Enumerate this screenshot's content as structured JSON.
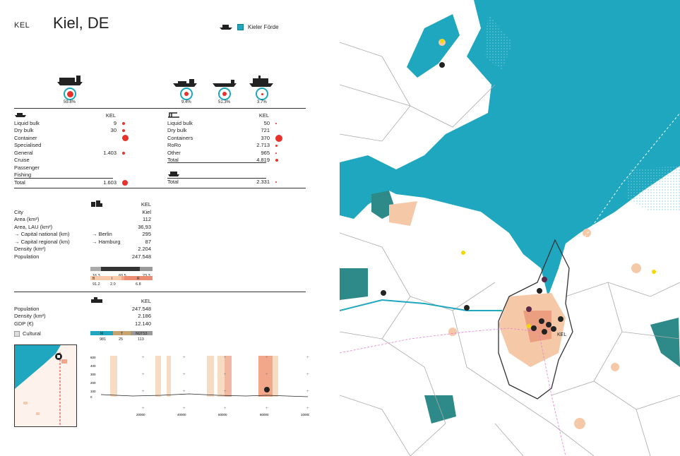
{
  "header": {
    "code": "KEL",
    "city": "Kiel, DE",
    "water_label": "Kieler Förde"
  },
  "icons": {
    "ship_main": "container-ship-icon",
    "ship_a": "tanker-icon",
    "ship_b": "bulk-ship-icon",
    "ship_c": "ferry-icon"
  },
  "badges": {
    "main_pct": "59.8%",
    "a_pct": "9.4%",
    "b_pct": "51.3%",
    "c_pct": "3.7%"
  },
  "left_table": {
    "col_header": "KEL",
    "rows": [
      {
        "label": "Liquid bulk",
        "value": "9"
      },
      {
        "label": "Dry bulk",
        "value": "30"
      },
      {
        "label": "Container",
        "value": ""
      },
      {
        "label": "Specialised",
        "value": ""
      },
      {
        "label": "General",
        "value": "1.403"
      },
      {
        "label": "Cruise",
        "value": ""
      },
      {
        "label": "Passenger",
        "value": ""
      },
      {
        "label": "Fishing",
        "value": ""
      },
      {
        "label": "Total",
        "value": "1.603"
      }
    ]
  },
  "right_table": {
    "col_header": "KEL",
    "rows": [
      {
        "label": "Liquid bulk",
        "value": "50"
      },
      {
        "label": "Dry bulk",
        "value": "721"
      },
      {
        "label": "Containers",
        "value": "370"
      },
      {
        "label": "RoRo",
        "value": "2.713"
      },
      {
        "label": "Other",
        "value": "965"
      },
      {
        "label": "Total",
        "value": "4.819"
      }
    ],
    "passenger_total_label": "Total",
    "passenger_total_value": "2.331"
  },
  "city_table": {
    "col_header": "KEL",
    "rows": [
      {
        "label": "City",
        "mid": "",
        "value": "Kiel"
      },
      {
        "label": "Area (km²)",
        "mid": "",
        "value": "112"
      },
      {
        "label": "Area, LAU (km²)",
        "mid": "",
        "value": "36,93"
      },
      {
        "label": "→ Capital national (km)",
        "mid": "→ Berlin",
        "value": "295"
      },
      {
        "label": "→ Capital regional (km)",
        "mid": "→ Hamburg",
        "value": "87"
      },
      {
        "label": "Density (km²)",
        "mid": "",
        "value": "2.204"
      },
      {
        "label": "Population",
        "mid": "",
        "value": "247.548"
      }
    ]
  },
  "bar1": {
    "labels": [
      "16.3",
      "60.5",
      "23.3"
    ]
  },
  "bar2": {
    "heads": [
      "B",
      "I",
      "R"
    ],
    "labels": [
      "91.2",
      "2.0",
      "6.8"
    ]
  },
  "region_table": {
    "col_header": "KEL",
    "rows": [
      {
        "label": "Population",
        "value": "247.548"
      },
      {
        "label": "Density (km²)",
        "value": "2.186"
      },
      {
        "label": "GDP (€)",
        "value": "12.140"
      }
    ],
    "cultural_label": "Cultural"
  },
  "bar3": {
    "heads": [
      "M",
      "T",
      "NUTS3"
    ],
    "labels": [
      "981",
      "25",
      "113"
    ]
  },
  "profile": {
    "y_ticks": [
      "600",
      "400",
      "300",
      "200",
      "100",
      "0"
    ],
    "x_ticks": [
      "20000",
      "40000",
      "60000",
      "80000",
      "100000"
    ]
  },
  "map": {
    "kel_label": "KEL"
  },
  "colors": {
    "accent": "#e8312a",
    "water": "#1ea7bf",
    "urban": "#f5c9a8"
  }
}
